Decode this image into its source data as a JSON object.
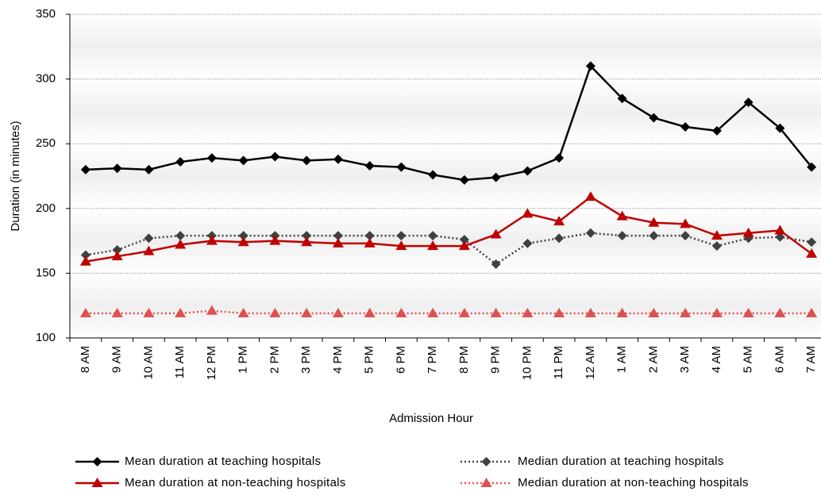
{
  "chart_data": {
    "type": "line",
    "x_label": "Admission Hour",
    "y_label": "Duration (in minutes)",
    "categories": [
      "8 AM",
      "9 AM",
      "10 AM",
      "11 AM",
      "12 PM",
      "1 PM",
      "2 PM",
      "3 PM",
      "4 PM",
      "5 PM",
      "6 PM",
      "7 PM",
      "8 PM",
      "9 PM",
      "10 PM",
      "11 PM",
      "12 AM",
      "1 AM",
      "2 AM",
      "3 AM",
      "4 AM",
      "5 AM",
      "6 AM",
      "7 AM"
    ],
    "series": [
      {
        "name": "Mean duration at teaching hospitals",
        "color": "#000000",
        "line_style": "solid",
        "marker": "diamond",
        "values": [
          230,
          231,
          230,
          236,
          239,
          237,
          240,
          237,
          238,
          233,
          232,
          226,
          222,
          224,
          229,
          239,
          310,
          285,
          270,
          263,
          260,
          282,
          262,
          232
        ]
      },
      {
        "name": "Median duration at teaching hospitals",
        "color": "#404040",
        "line_style": "dotted",
        "marker": "diamond",
        "values": [
          164,
          168,
          177,
          179,
          179,
          179,
          179,
          179,
          179,
          179,
          179,
          179,
          176,
          157,
          173,
          177,
          181,
          179,
          179,
          179,
          171,
          177,
          178,
          174
        ]
      },
      {
        "name": "Mean duration at non-teaching hospitals",
        "color": "#c00000",
        "line_style": "solid",
        "marker": "triangle",
        "values": [
          159,
          163,
          167,
          172,
          175,
          174,
          175,
          174,
          173,
          173,
          171,
          171,
          171,
          180,
          196,
          190,
          209,
          194,
          189,
          188,
          179,
          181,
          183,
          165
        ]
      },
      {
        "name": "Median duration at non-teaching hospitals",
        "color": "#e05050",
        "line_style": "dotted",
        "marker": "triangle",
        "values": [
          119,
          119,
          119,
          119,
          121,
          119,
          119,
          119,
          119,
          119,
          119,
          119,
          119,
          119,
          119,
          119,
          119,
          119,
          119,
          119,
          119,
          119,
          119,
          119
        ]
      }
    ],
    "ylim": [
      100,
      350
    ],
    "yticks": [
      100,
      150,
      200,
      250,
      300,
      350
    ],
    "grid": true
  }
}
